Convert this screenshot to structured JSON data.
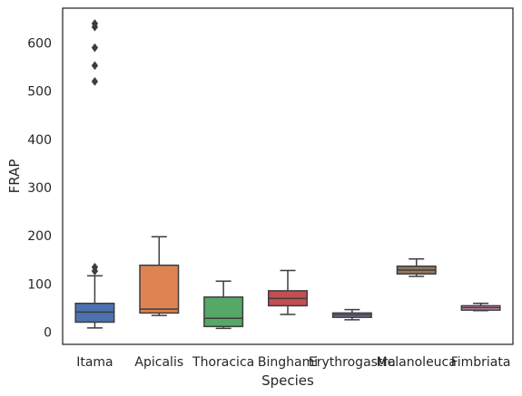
{
  "chart_data": {
    "type": "box",
    "title": "",
    "xlabel": "Species",
    "ylabel": "FRAP",
    "ylim": [
      -25,
      672
    ],
    "yticks": [
      0,
      100,
      200,
      300,
      400,
      500,
      600
    ],
    "grid": false,
    "legend": "none",
    "categories": [
      "Itama",
      "Apicalis",
      "Thoracica",
      "Binghami",
      "Erythrogastra",
      "Melanoleuca",
      "Fimbriata"
    ],
    "boxes": [
      {
        "label": "Itama",
        "color": "#4c72b0",
        "whisker_low": 9,
        "q1": 21,
        "median": 42,
        "q3": 60,
        "whisker_high": 117,
        "outliers": [
          127,
          135,
          520,
          553,
          590,
          633,
          640
        ]
      },
      {
        "label": "Apicalis",
        "color": "#dd8452",
        "whisker_low": 35,
        "q1": 40,
        "median": 48,
        "q3": 139,
        "whisker_high": 198,
        "outliers": []
      },
      {
        "label": "Thoracica",
        "color": "#55a868",
        "whisker_low": 8,
        "q1": 12,
        "median": 29,
        "q3": 73,
        "whisker_high": 106,
        "outliers": []
      },
      {
        "label": "Binghami",
        "color": "#c44e52",
        "whisker_low": 37,
        "q1": 55,
        "median": 70,
        "q3": 86,
        "whisker_high": 128,
        "outliers": []
      },
      {
        "label": "Erythrogastra",
        "color": "#8172b3",
        "whisker_low": 26,
        "q1": 31,
        "median": 36,
        "q3": 40,
        "whisker_high": 47,
        "outliers": []
      },
      {
        "label": "Melanoleuca",
        "color": "#937860",
        "whisker_low": 116,
        "q1": 121,
        "median": 129,
        "q3": 137,
        "whisker_high": 152,
        "outliers": []
      },
      {
        "label": "Fimbriata",
        "color": "#da8bc3",
        "whisker_low": 45,
        "q1": 46,
        "median": 51,
        "q3": 55,
        "whisker_high": 60,
        "outliers": []
      }
    ]
  }
}
